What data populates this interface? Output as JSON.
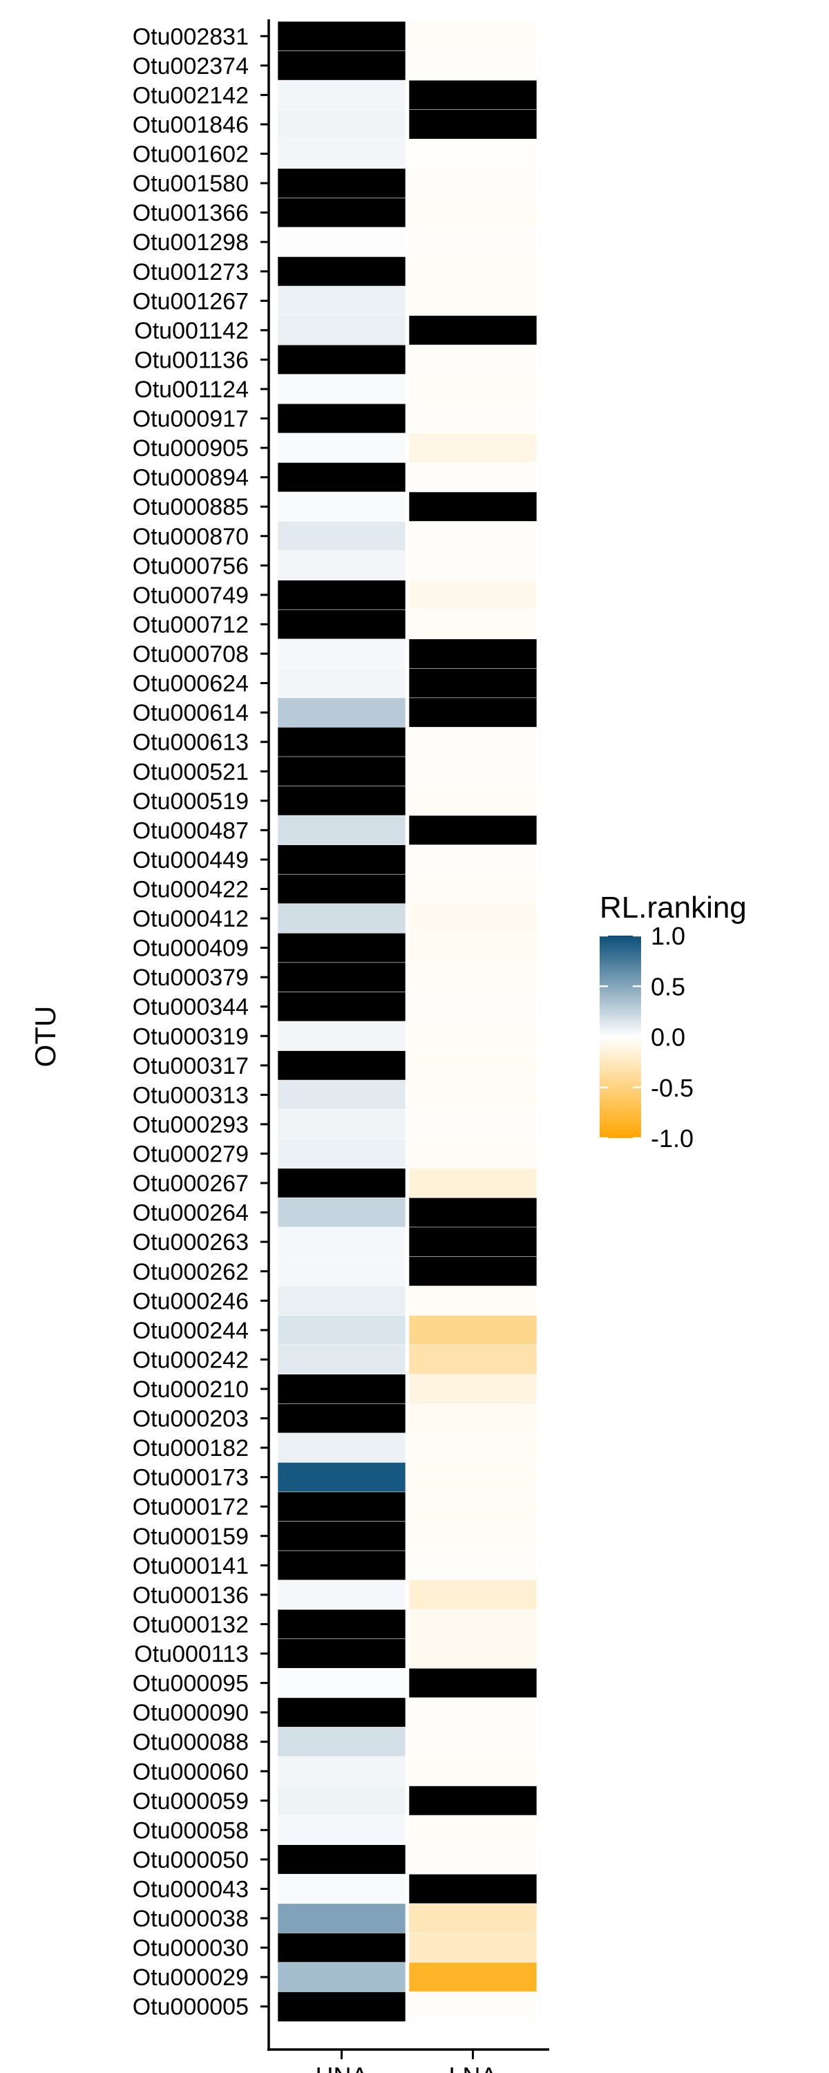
{
  "chart_data": {
    "type": "heatmap",
    "ylabel": "OTU",
    "xlabel": "",
    "x_categories": [
      "HNA",
      "LNA"
    ],
    "y_categories": [
      "Otu002831",
      "Otu002374",
      "Otu002142",
      "Otu001846",
      "Otu001602",
      "Otu001580",
      "Otu001366",
      "Otu001298",
      "Otu001273",
      "Otu001267",
      "Otu001142",
      "Otu001136",
      "Otu001124",
      "Otu000917",
      "Otu000905",
      "Otu000894",
      "Otu000885",
      "Otu000870",
      "Otu000756",
      "Otu000749",
      "Otu000712",
      "Otu000708",
      "Otu000624",
      "Otu000614",
      "Otu000613",
      "Otu000521",
      "Otu000519",
      "Otu000487",
      "Otu000449",
      "Otu000422",
      "Otu000412",
      "Otu000409",
      "Otu000379",
      "Otu000344",
      "Otu000319",
      "Otu000317",
      "Otu000313",
      "Otu000293",
      "Otu000279",
      "Otu000267",
      "Otu000264",
      "Otu000263",
      "Otu000262",
      "Otu000246",
      "Otu000244",
      "Otu000242",
      "Otu000210",
      "Otu000203",
      "Otu000182",
      "Otu000173",
      "Otu000172",
      "Otu000159",
      "Otu000141",
      "Otu000136",
      "Otu000132",
      "Otu000113",
      "Otu000095",
      "Otu000090",
      "Otu000088",
      "Otu000060",
      "Otu000059",
      "Otu000058",
      "Otu000050",
      "Otu000043",
      "Otu000038",
      "Otu000030",
      "Otu000029",
      "Otu000005"
    ],
    "values": [
      [
        null,
        -0.03
      ],
      [
        null,
        -0.02
      ],
      [
        0.05,
        null
      ],
      [
        0.06,
        null
      ],
      [
        0.05,
        -0.01
      ],
      [
        null,
        -0.02
      ],
      [
        null,
        -0.04
      ],
      [
        0.01,
        -0.02
      ],
      [
        null,
        -0.03
      ],
      [
        0.08,
        -0.03
      ],
      [
        0.09,
        null
      ],
      [
        null,
        -0.02
      ],
      [
        0.03,
        -0.03
      ],
      [
        null,
        -0.02
      ],
      [
        0.03,
        -0.1
      ],
      [
        null,
        -0.02
      ],
      [
        0.03,
        null
      ],
      [
        0.12,
        -0.02
      ],
      [
        0.05,
        -0.02
      ],
      [
        null,
        -0.07
      ],
      [
        null,
        -0.03
      ],
      [
        0.04,
        null
      ],
      [
        0.05,
        null
      ],
      [
        0.3,
        null
      ],
      [
        null,
        -0.02
      ],
      [
        null,
        -0.02
      ],
      [
        null,
        -0.03
      ],
      [
        0.18,
        null
      ],
      [
        null,
        -0.02
      ],
      [
        null,
        -0.03
      ],
      [
        0.19,
        -0.06
      ],
      [
        null,
        -0.05
      ],
      [
        null,
        -0.03
      ],
      [
        null,
        -0.02
      ],
      [
        0.05,
        -0.03
      ],
      [
        null,
        -0.04
      ],
      [
        0.12,
        -0.04
      ],
      [
        0.06,
        -0.02
      ],
      [
        0.08,
        -0.03
      ],
      [
        null,
        -0.15
      ],
      [
        0.24,
        null
      ],
      [
        0.04,
        null
      ],
      [
        0.04,
        null
      ],
      [
        0.09,
        -0.04
      ],
      [
        0.15,
        -0.45
      ],
      [
        0.12,
        -0.33
      ],
      [
        null,
        -0.12
      ],
      [
        null,
        -0.05
      ],
      [
        0.08,
        -0.04
      ],
      [
        0.95,
        -0.04
      ],
      [
        null,
        -0.04
      ],
      [
        null,
        -0.03
      ],
      [
        null,
        -0.02
      ],
      [
        0.04,
        -0.17
      ],
      [
        null,
        -0.06
      ],
      [
        null,
        -0.06
      ],
      [
        0.02,
        null
      ],
      [
        null,
        -0.02
      ],
      [
        0.18,
        -0.02
      ],
      [
        0.05,
        -0.04
      ],
      [
        0.07,
        null
      ],
      [
        0.04,
        -0.03
      ],
      [
        null,
        -0.02
      ],
      [
        0.03,
        null
      ],
      [
        0.52,
        -0.27
      ],
      [
        null,
        -0.23
      ],
      [
        0.37,
        -0.85
      ],
      [
        null,
        -0.02
      ]
    ],
    "missing_color": "#000000",
    "legend": {
      "title": "RL.ranking",
      "position": "right",
      "range": [
        -1.0,
        1.0
      ],
      "ticks": [
        1.0,
        0.5,
        0.0,
        -0.5,
        -1.0
      ],
      "tick_labels": [
        "1.0",
        "0.5",
        "0.0",
        "-0.5",
        "-1.0"
      ]
    },
    "colorscale": {
      "low": "#FFA500",
      "mid": "#FFFFFF",
      "high": "#0B4F79"
    },
    "grid": false
  }
}
